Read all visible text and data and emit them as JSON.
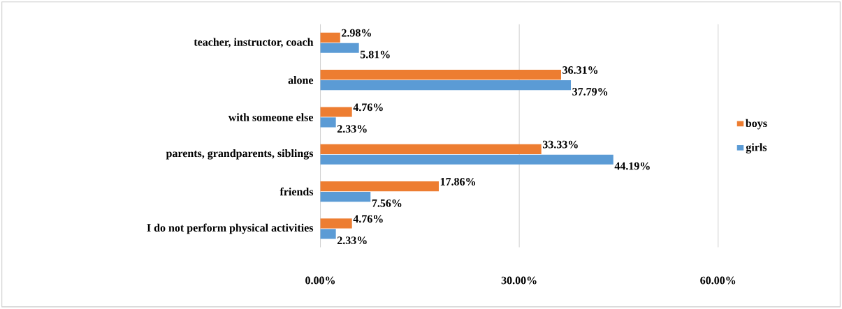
{
  "chart_data": {
    "type": "bar",
    "orientation": "horizontal",
    "categories": [
      "teacher, instructor, coach",
      "alone",
      "with someone else",
      "parents, grandparents, siblings",
      "friends",
      "I do not perform physical activities"
    ],
    "series": [
      {
        "name": "boys",
        "color": "#ed7d31",
        "values": [
          2.98,
          36.31,
          4.76,
          33.33,
          17.86,
          4.76
        ],
        "value_labels": [
          "2.98%",
          "36.31%",
          "4.76%",
          "33.33%",
          "17.86%",
          "4.76%"
        ]
      },
      {
        "name": "girls",
        "color": "#5b9bd5",
        "values": [
          5.81,
          37.79,
          2.33,
          44.19,
          7.56,
          2.33
        ],
        "value_labels": [
          "5.81%",
          "37.79%",
          "2.33%",
          "44.19%",
          "7.56%",
          "2.33%"
        ]
      }
    ],
    "xlim": [
      0,
      60
    ],
    "xticks": [
      {
        "value": 0,
        "label": "0.00%"
      },
      {
        "value": 30,
        "label": "30.00%"
      },
      {
        "value": 60,
        "label": "60.00%"
      }
    ],
    "grid": "x",
    "legend": "right"
  }
}
